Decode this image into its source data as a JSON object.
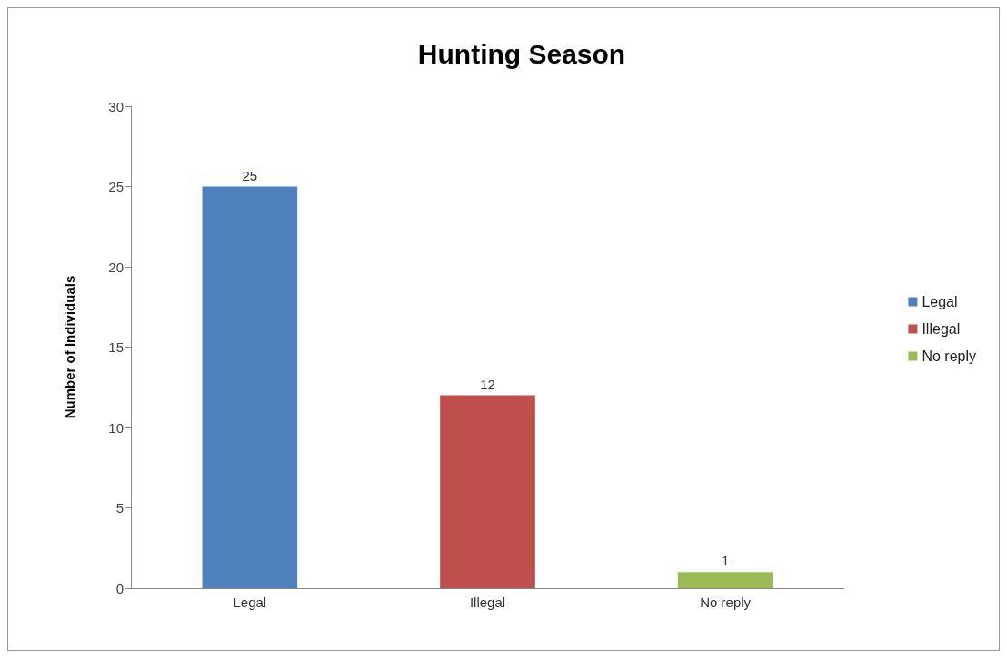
{
  "chart_data": {
    "type": "bar",
    "title": "Hunting Season",
    "ylabel": "Number of Individuals",
    "categories": [
      "Legal",
      "Illegal",
      "No reply"
    ],
    "series": [
      {
        "name": "Legal",
        "color": "#4f81bd",
        "values": [
          25,
          null,
          null
        ]
      },
      {
        "name": "Illegal",
        "color": "#c0504d",
        "values": [
          null,
          12,
          null
        ]
      },
      {
        "name": "No reply",
        "color": "#9bbb59",
        "values": [
          null,
          null,
          1
        ]
      }
    ],
    "ylim": [
      0,
      30
    ],
    "yticks": [
      0,
      5,
      10,
      15,
      20,
      25,
      30
    ],
    "grid": false,
    "legend": "right",
    "data_labels": true
  }
}
